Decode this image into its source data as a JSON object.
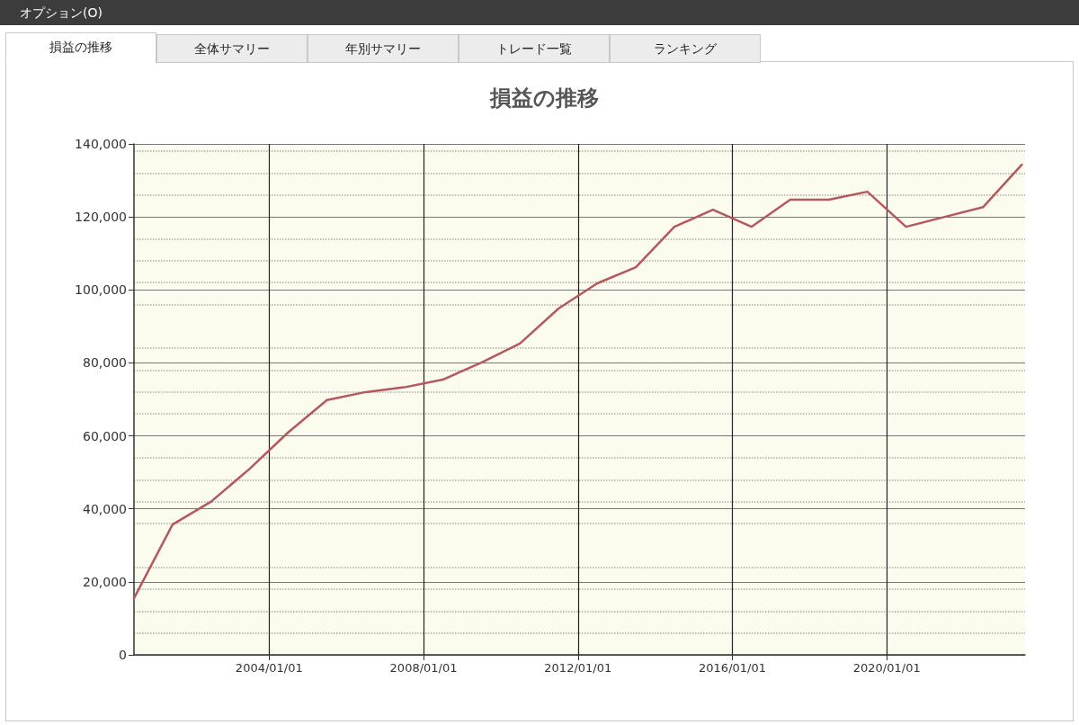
{
  "chart_data": {
    "type": "line",
    "title": "損益の推移",
    "annotations": [
      "オプション(O)",
      "損益の推移",
      "全体サマリー",
      "年別サマリー",
      "トレード一覧",
      "ランキング"
    ],
    "x": [
      "2000-07",
      "2001-07",
      "2002-07",
      "2003-07",
      "2004-07",
      "2005-07",
      "2006-07",
      "2007-07",
      "2008-07",
      "2009-07",
      "2010-07",
      "2011-07",
      "2012-07",
      "2013-07",
      "2014-07",
      "2015-07",
      "2016-07",
      "2017-07",
      "2018-07",
      "2019-07",
      "2020-07",
      "2021-07",
      "2022-07",
      "2023-07"
    ],
    "series": [
      {
        "color": "#b5585e",
        "values": [
          15500,
          35700,
          42000,
          51000,
          61000,
          69800,
          72000,
          73300,
          75400,
          80100,
          85300,
          94900,
          101800,
          106200,
          117300,
          122000,
          117300,
          124700,
          124700,
          126900,
          117300,
          120000,
          122700,
          134300
        ]
      }
    ],
    "xlim": [
      "2000-07",
      "2023-08"
    ],
    "xticks": [
      {
        "value": "2004-01-01",
        "label": "2004/01/01"
      },
      {
        "value": "2008-01-01",
        "label": "2008/01/01"
      },
      {
        "value": "2012-01-01",
        "label": "2012/01/01"
      },
      {
        "value": "2016-01-01",
        "label": "2016/01/01"
      },
      {
        "value": "2020-01-01",
        "label": "2020/01/01"
      }
    ],
    "ylim": [
      0,
      140000
    ],
    "yticks": [
      {
        "value": 0,
        "label": "0"
      },
      {
        "value": 20000,
        "label": "20,000"
      },
      {
        "value": 40000,
        "label": "40,000"
      },
      {
        "value": 60000,
        "label": "60,000"
      },
      {
        "value": 80000,
        "label": "80,000"
      },
      {
        "value": 100000,
        "label": "100,000"
      },
      {
        "value": 120000,
        "label": "120,000"
      },
      {
        "value": 140000,
        "label": "140,000"
      }
    ],
    "grid": true,
    "marker": "none",
    "line_style": "solid"
  }
}
